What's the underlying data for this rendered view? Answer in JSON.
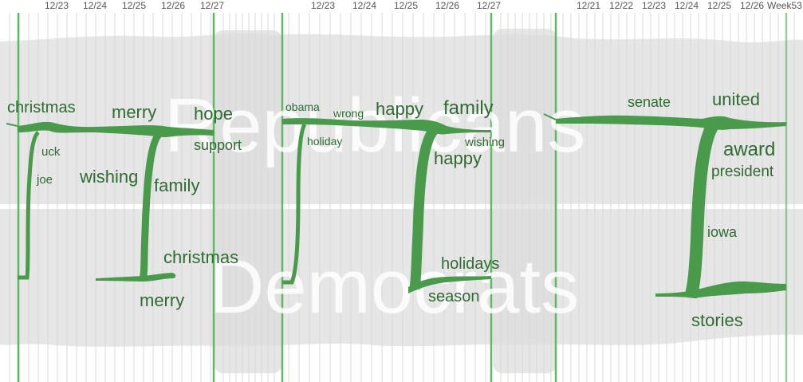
{
  "chart_data": {
    "type": "area",
    "watermarks": {
      "top": "Republicans",
      "bottom": "Democrats"
    },
    "colors": {
      "flow": "#4a9a4c",
      "text": "#2f6b32",
      "band": "#e6e6e6",
      "divider": "#ffffff",
      "selected_line": "#5fb863",
      "grid": "#d8d8d8",
      "tick_text": "#555555"
    },
    "panels": [
      {
        "x_ticks": [
          "12/23",
          "12/24",
          "12/25",
          "12/26",
          "12/27"
        ],
        "keywords": {
          "republicans": [
            "christmas",
            "merry",
            "hope",
            "support",
            "uck",
            "joe",
            "wishing",
            "family"
          ],
          "democrats": [
            "christmas",
            "merry"
          ]
        }
      },
      {
        "x_ticks": [
          "12/23",
          "12/24",
          "12/25",
          "12/26",
          "12/27"
        ],
        "keywords": {
          "republicans": [
            "obama",
            "wrong",
            "happy",
            "family",
            "holiday",
            "wishing",
            "happy"
          ],
          "democrats": [
            "holidays",
            "season"
          ]
        }
      },
      {
        "x_ticks": [
          "12/21",
          "12/22",
          "12/23",
          "12/24",
          "12/25",
          "12/26",
          "Week53"
        ],
        "keywords": {
          "republicans": [
            "senate",
            "united",
            "award",
            "president",
            "iowa"
          ],
          "democrats": [
            "stories"
          ]
        }
      }
    ]
  }
}
